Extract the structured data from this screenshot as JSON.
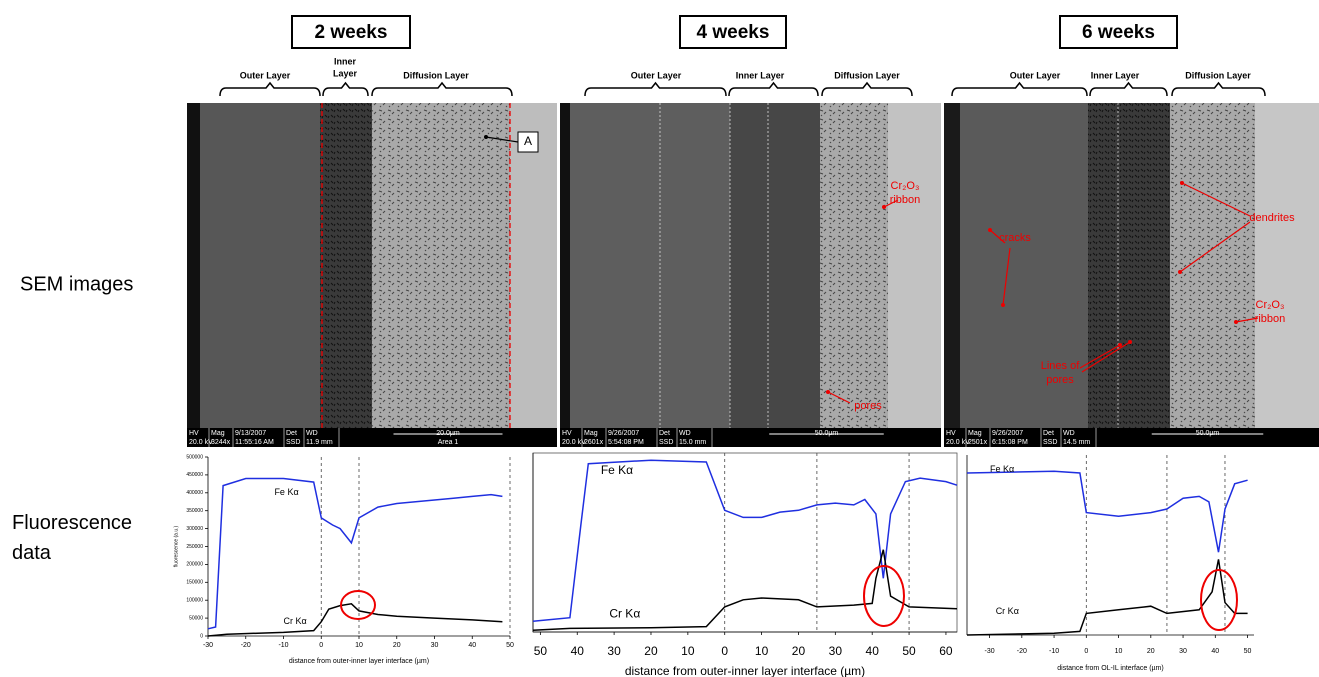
{
  "row_labels": [
    "SEM images",
    "Fluorescence data"
  ],
  "panels": [
    {
      "title": "2 weeks",
      "layers": [
        [
          "Outer Layer"
        ],
        [
          "Inner",
          "Layer"
        ],
        [
          "Diffusion Layer"
        ]
      ],
      "annotations": [
        [
          "A"
        ]
      ],
      "info": [
        {
          "label": "HV",
          "value": "20.0 kV"
        },
        {
          "label": "Mag",
          "value": "3244x"
        },
        {
          "label": "9/13/2007",
          "value": "11:55:16 AM"
        },
        {
          "label": "Det",
          "value": "SSD"
        },
        {
          "label": "WD",
          "value": "11.9 mm"
        }
      ],
      "scale_bar": "20.0µm",
      "area": "Area 1",
      "plot": {
        "type": "line",
        "xlim": [
          -30,
          50
        ],
        "ylim": [
          0,
          500000
        ],
        "xticks": [
          -30,
          -20,
          -10,
          0,
          10,
          20,
          30,
          40,
          50
        ],
        "yticks": [
          0,
          50000,
          100000,
          150000,
          200000,
          250000,
          300000,
          350000,
          400000,
          450000,
          500000
        ],
        "xlabel": "distance from outer-inner layer interface (µm)",
        "ylabel": "fluorescence (a.u.)",
        "dividers": [
          0,
          10,
          50
        ],
        "series": [
          {
            "name": "Fe Kα",
            "color": "#1f2fe0",
            "x": [
              -30,
              -28,
              -26,
              -20,
              -10,
              -2,
              0,
              3,
              5,
              8,
              10,
              15,
              20,
              25,
              30,
              35,
              40,
              45,
              48
            ],
            "values": [
              20000,
              25000,
              420000,
              440000,
              440000,
              430000,
              330000,
              310000,
              300000,
              260000,
              330000,
              360000,
              370000,
              375000,
              380000,
              385000,
              390000,
              395000,
              390000
            ]
          },
          {
            "name": "Cr Kα",
            "color": "#000000",
            "x": [
              -30,
              -25,
              -10,
              -2,
              0,
              2,
              5,
              8,
              10,
              15,
              20,
              30,
              40,
              48
            ],
            "values": [
              0,
              5000,
              10000,
              15000,
              40000,
              75000,
              85000,
              90000,
              70000,
              60000,
              55000,
              50000,
              45000,
              40000
            ]
          }
        ]
      }
    },
    {
      "title": "4 weeks",
      "layers": [
        [
          "Outer Layer"
        ],
        [
          "Inner Layer"
        ],
        [
          "Diffusion Layer"
        ]
      ],
      "annotations": [
        [
          "Cr₂O₃",
          "ribbon"
        ],
        [
          "pores"
        ]
      ],
      "info": [
        {
          "label": "HV",
          "value": "20.0 kV"
        },
        {
          "label": "Mag",
          "value": "2601x"
        },
        {
          "label": "9/26/2007",
          "value": "5:54:08 PM"
        },
        {
          "label": "Det",
          "value": "SSD"
        },
        {
          "label": "WD",
          "value": "15.0 mm"
        }
      ],
      "scale_bar": "50.0µm",
      "plot": {
        "type": "line",
        "xlim": [
          -52,
          63
        ],
        "ylim": [
          0,
          500000
        ],
        "xticks": [
          {
            "value": -50,
            "label": "50"
          },
          {
            "value": -40,
            "label": "40"
          },
          {
            "value": -30,
            "label": "30"
          },
          {
            "value": -20,
            "label": "20"
          },
          {
            "value": -10,
            "label": "10"
          },
          0,
          10,
          20,
          30,
          40,
          50,
          60
        ],
        "xlabel": "distance from outer-inner layer interface (µm)",
        "dividers": [
          0,
          25,
          50
        ],
        "series": [
          {
            "name": "Fe Kα",
            "color": "#1f2fe0",
            "x": [
              -52,
              -42,
              -39,
              -37,
              -20,
              -5,
              0,
              5,
              10,
              15,
              20,
              25,
              30,
              35,
              38,
              41,
              43,
              45,
              49,
              53,
              60,
              63
            ],
            "values": [
              30000,
              40000,
              300000,
              470000,
              480000,
              475000,
              340000,
              320000,
              320000,
              335000,
              340000,
              355000,
              360000,
              355000,
              370000,
              330000,
              150000,
              330000,
              420000,
              430000,
              420000,
              410000
            ]
          },
          {
            "name": "Cr Kα",
            "color": "#000000",
            "x": [
              -52,
              -42,
              -20,
              -5,
              0,
              5,
              10,
              20,
              25,
              35,
              40,
              41,
              43,
              45,
              50,
              63
            ],
            "values": [
              5000,
              10000,
              12000,
              15000,
              70000,
              90000,
              95000,
              90000,
              70000,
              75000,
              80000,
              150000,
              230000,
              100000,
              70000,
              65000
            ]
          }
        ]
      }
    },
    {
      "title": "6 weeks",
      "layers": [
        [
          "Outer Layer"
        ],
        [
          "Inner Layer"
        ],
        [
          "Diffusion Layer"
        ]
      ],
      "annotations": [
        [
          "cracks"
        ],
        [
          "dendrites"
        ],
        [
          "Cr₂O₃",
          "ribbon"
        ],
        [
          "Lines of",
          "pores"
        ]
      ],
      "info": [
        {
          "label": "HV",
          "value": "20.0 kV"
        },
        {
          "label": "Mag",
          "value": "2501x"
        },
        {
          "label": "9/26/2007",
          "value": "6:15:08 PM"
        },
        {
          "label": "Det",
          "value": "SSD"
        },
        {
          "label": "WD",
          "value": "14.5 mm"
        }
      ],
      "scale_bar": "50.0µm",
      "plot": {
        "type": "line",
        "xlim": [
          -37,
          52
        ],
        "ylim": [
          0,
          500000
        ],
        "xticks": [
          -30,
          -20,
          -10,
          0,
          10,
          20,
          30,
          40,
          50
        ],
        "xlabel": "distance from OL-IL interface (µm)",
        "dividers": [
          0,
          25,
          43
        ],
        "series": [
          {
            "name": "Fe Kα",
            "color": "#1f2fe0",
            "x": [
              -37,
              -10,
              -2,
              0,
              10,
              20,
              25,
              30,
              35,
              38,
              41,
              43,
              46,
              50
            ],
            "values": [
              450000,
              455000,
              450000,
              340000,
              330000,
              340000,
              350000,
              380000,
              385000,
              370000,
              230000,
              350000,
              420000,
              430000
            ]
          },
          {
            "name": "Cr Kα",
            "color": "#000000",
            "x": [
              -37,
              -10,
              -2,
              0,
              10,
              20,
              25,
              35,
              39,
              41,
              43,
              46,
              50
            ],
            "values": [
              0,
              5000,
              10000,
              60000,
              70000,
              80000,
              60000,
              70000,
              120000,
              210000,
              90000,
              60000,
              60000
            ]
          }
        ]
      }
    }
  ]
}
